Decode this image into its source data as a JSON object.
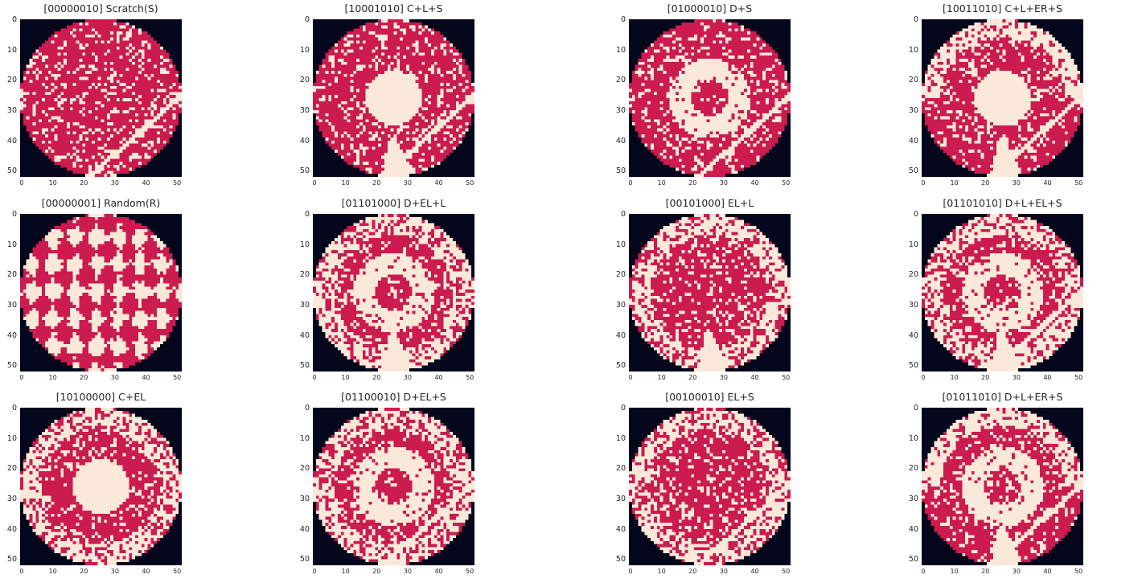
{
  "figure": {
    "colors": {
      "background": "#04061c",
      "normal": "#cb1b4f",
      "defect": "#fae8d8"
    },
    "y_ticks": [
      "0",
      "10",
      "20",
      "30",
      "40",
      "50"
    ],
    "x_ticks": [
      "0",
      "10",
      "20",
      "30",
      "40",
      "50"
    ],
    "grid_size": 52,
    "panels": [
      {
        "label": "[00000010] Scratch(S)",
        "pattern": "S"
      },
      {
        "label": "[10001010] C+L+S",
        "pattern": "C+L+S"
      },
      {
        "label": "[01000010] D+S",
        "pattern": "D+S"
      },
      {
        "label": "[10011010] C+L+ER+S",
        "pattern": "C+L+ER+S"
      },
      {
        "label": "[00000001] Random(R)",
        "pattern": "R"
      },
      {
        "label": "[01101000] D+EL+L",
        "pattern": "D+EL+L"
      },
      {
        "label": "[00101000] EL+L",
        "pattern": "EL+L"
      },
      {
        "label": "[01101010] D+L+EL+S",
        "pattern": "D+L+EL+S"
      },
      {
        "label": "[10100000] C+EL",
        "pattern": "C+EL"
      },
      {
        "label": "[01100010] D+EL+S",
        "pattern": "D+EL+S"
      },
      {
        "label": "[00100010] EL+S",
        "pattern": "EL+S"
      },
      {
        "label": "[01011010] D+L+ER+S",
        "pattern": "D+L+ER+S"
      }
    ]
  }
}
